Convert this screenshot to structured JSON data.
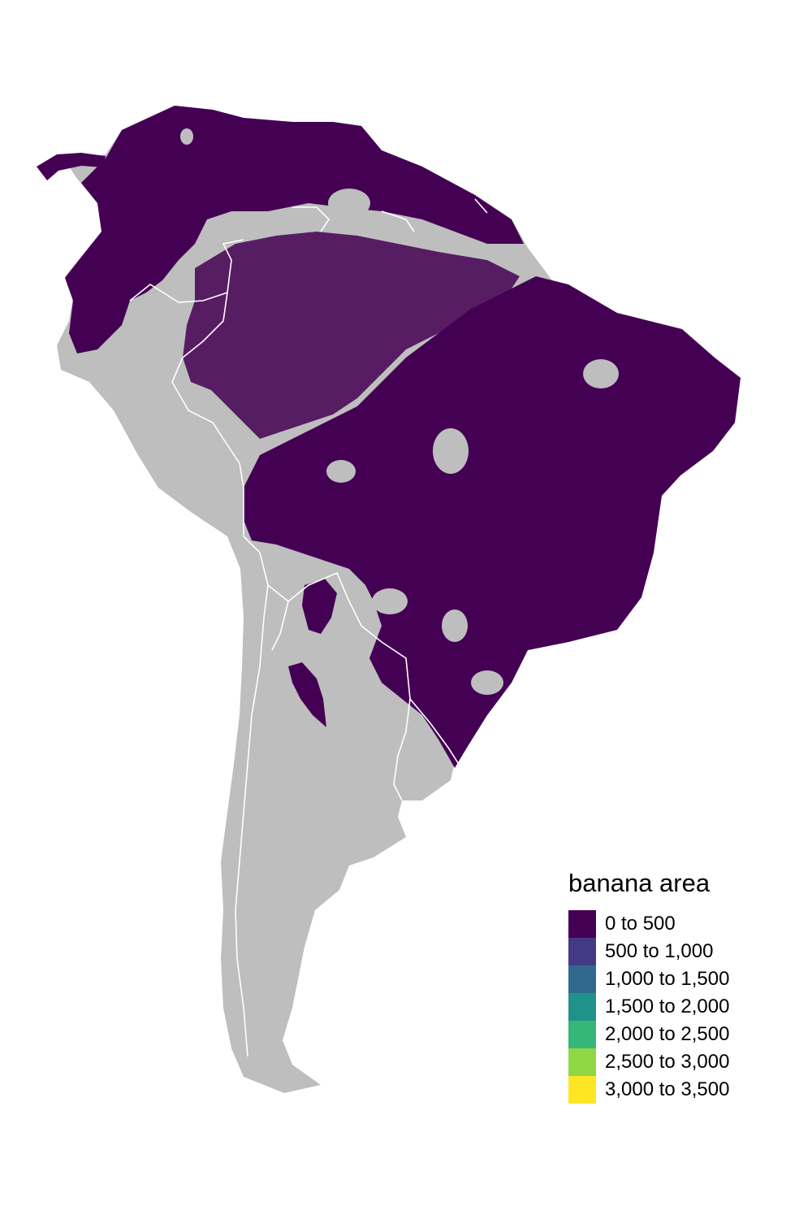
{
  "map": {
    "land_color": "#bebebe",
    "border_color": "#ffffff",
    "fill_color": "#440154"
  },
  "legend": {
    "title": "banana area",
    "items": [
      {
        "label": "0 to 500",
        "color": "#440154"
      },
      {
        "label": "500 to 1,000",
        "color": "#443a83"
      },
      {
        "label": "1,000 to 1,500",
        "color": "#31688e"
      },
      {
        "label": "1,500 to 2,000",
        "color": "#21918c"
      },
      {
        "label": "2,000 to 2,500",
        "color": "#35b779"
      },
      {
        "label": "2,500 to 3,000",
        "color": "#8fd744"
      },
      {
        "label": "3,000 to 3,500",
        "color": "#fde725"
      }
    ]
  }
}
